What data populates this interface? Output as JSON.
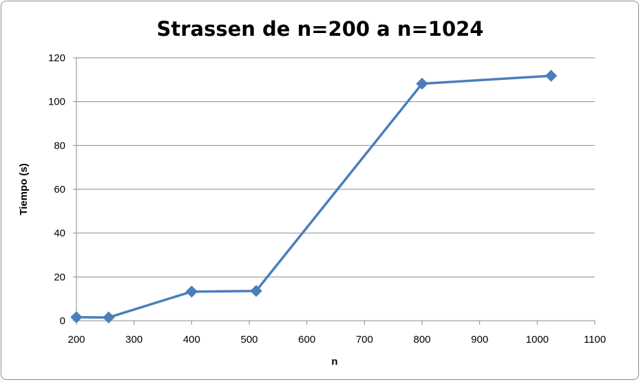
{
  "chart_data": {
    "type": "line",
    "title": "Strassen de n=200 a n=1024",
    "xlabel": "n",
    "ylabel": "Tiempo (s)",
    "xlim": [
      200,
      1100
    ],
    "ylim": [
      0,
      120
    ],
    "xticks": [
      200,
      300,
      400,
      500,
      600,
      700,
      800,
      900,
      1000,
      1100
    ],
    "yticks": [
      0,
      20,
      40,
      60,
      80,
      100,
      120
    ],
    "grid": "horizontal",
    "legend": "none",
    "series": [
      {
        "x": [
          200,
          256,
          400,
          512,
          800,
          1024
        ],
        "y": [
          1.6,
          1.5,
          13.3,
          13.6,
          108.2,
          111.8
        ],
        "color": "#4a7ebb",
        "marker": "diamond"
      }
    ]
  }
}
